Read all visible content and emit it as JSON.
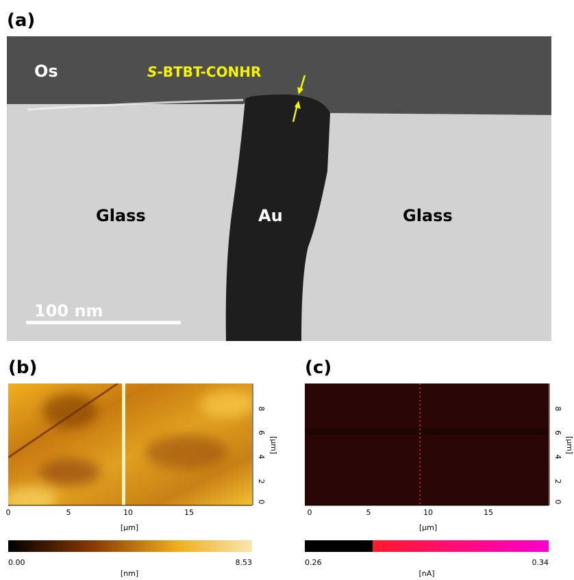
{
  "panel_a": {
    "label": "(a)",
    "os": "Os",
    "molecule_italic": "S",
    "molecule_rest": "-BTBT-CONHR",
    "glass_left": "Glass",
    "au": "Au",
    "glass_right": "Glass",
    "scale_bar": "100 nm"
  },
  "panel_b": {
    "label": "(b)",
    "x_ticks": [
      "0",
      "5",
      "10",
      "15"
    ],
    "x_unit": "[µm]",
    "y_ticks": [
      "0",
      "2",
      "4",
      "6",
      "8"
    ],
    "y_unit": "[µm]",
    "colorbar_min": "0.00",
    "colorbar_max": "8.53",
    "colorbar_unit": "[nm]"
  },
  "panel_c": {
    "label": "(c)",
    "x_ticks": [
      "0",
      "5",
      "10",
      "15"
    ],
    "x_unit": "[µm]",
    "y_ticks": [
      "0",
      "2",
      "4",
      "6",
      "8"
    ],
    "y_unit": "[µm]",
    "colorbar_min": "0.26",
    "colorbar_max": "0.34",
    "colorbar_unit": "[nA]"
  }
}
